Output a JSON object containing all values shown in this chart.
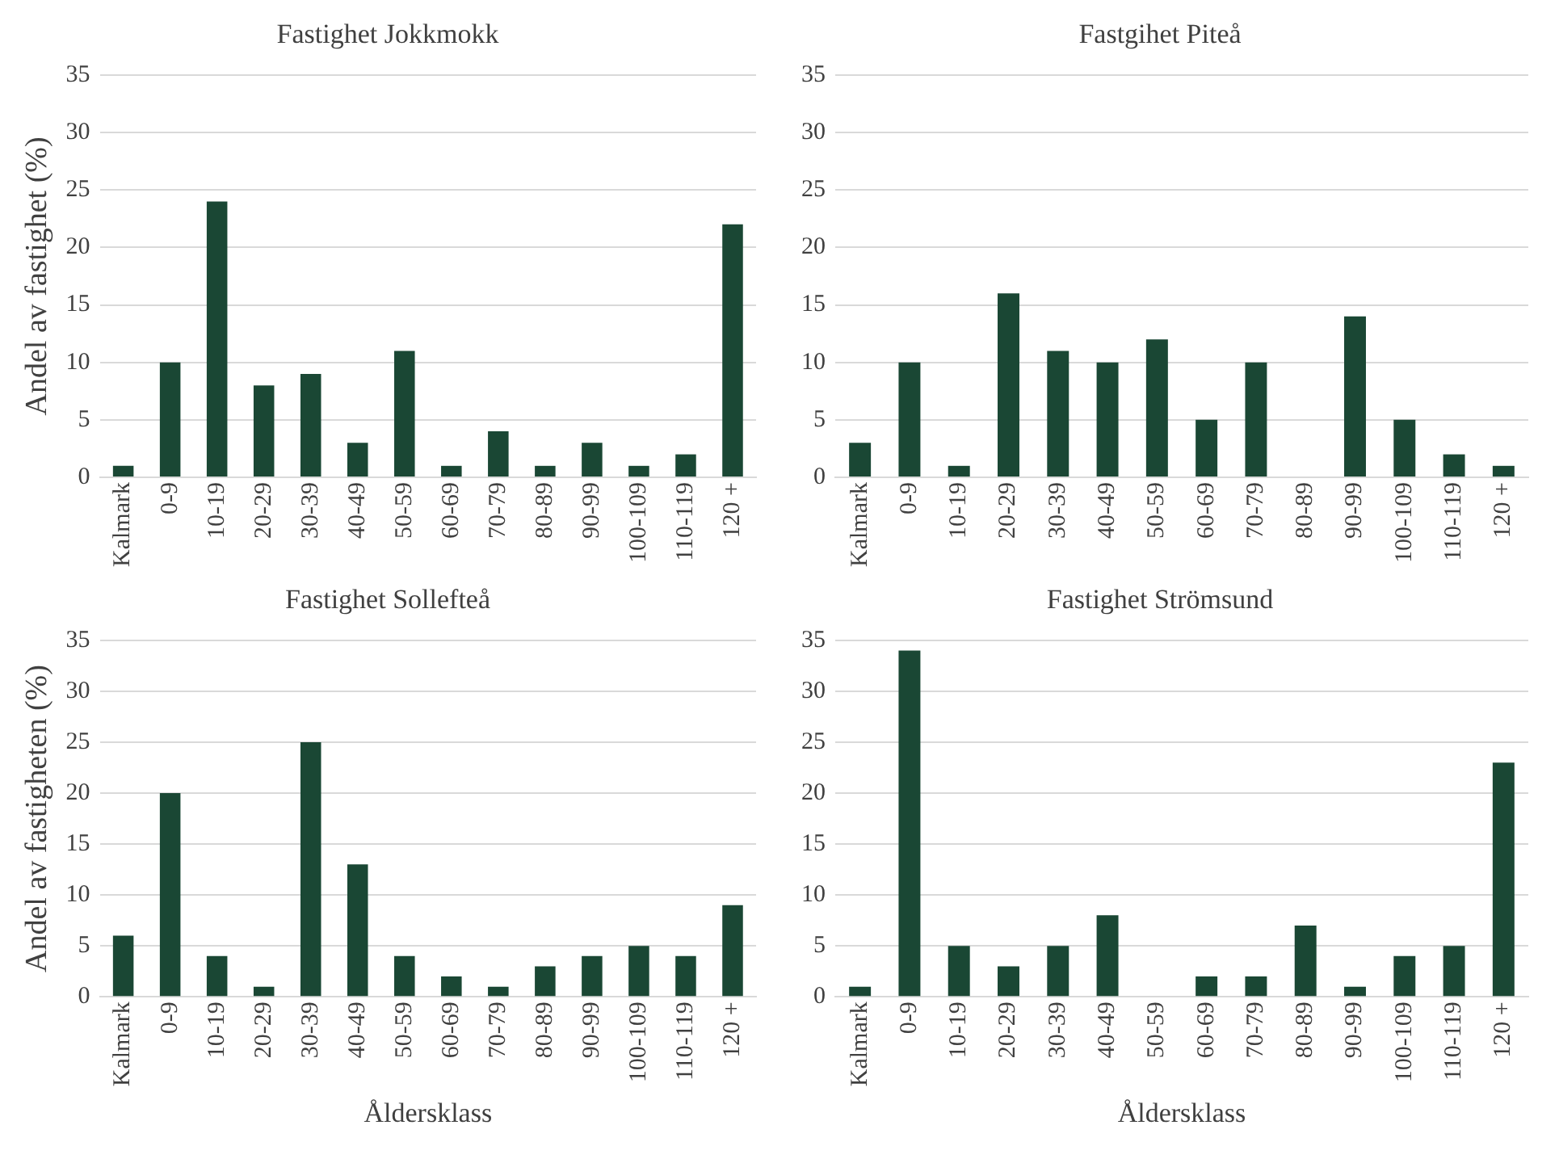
{
  "chart_data": [
    {
      "type": "bar",
      "title": "Fastighet Jokkmokk",
      "ylabel": "Andel av fastighet (%)",
      "categories": [
        "Kalmark",
        "0-9",
        "10-19",
        "20-29",
        "30-39",
        "40-49",
        "50-59",
        "60-69",
        "70-79",
        "80-89",
        "90-99",
        "100-109",
        "110-119",
        "120 +"
      ],
      "values": [
        1,
        10,
        24,
        8,
        9,
        3,
        11,
        1,
        4,
        1,
        3,
        1,
        2,
        22
      ],
      "color": "#1a4734",
      "ylim": [
        0,
        35
      ],
      "yticks": [
        0,
        5,
        10,
        15,
        20,
        25,
        30,
        35
      ],
      "grid": "y"
    },
    {
      "type": "bar",
      "title": "Fastgihet Piteå",
      "categories": [
        "Kalmark",
        "0-9",
        "10-19",
        "20-29",
        "30-39",
        "40-49",
        "50-59",
        "60-69",
        "70-79",
        "80-89",
        "90-99",
        "100-109",
        "110-119",
        "120 +"
      ],
      "values": [
        3,
        10,
        1,
        16,
        11,
        10,
        12,
        5,
        10,
        0,
        14,
        5,
        2,
        1
      ],
      "color": "#1a4734",
      "ylim": [
        0,
        35
      ],
      "yticks": [
        0,
        5,
        10,
        15,
        20,
        25,
        30,
        35
      ],
      "grid": "y"
    },
    {
      "type": "bar",
      "title": "Fastighet Sollefteå",
      "ylabel": "Andel av fastigheten (%)",
      "xlabel": "Åldersklass",
      "categories": [
        "Kalmark",
        "0-9",
        "10-19",
        "20-29",
        "30-39",
        "40-49",
        "50-59",
        "60-69",
        "70-79",
        "80-89",
        "90-99",
        "100-109",
        "110-119",
        "120 +"
      ],
      "values": [
        6,
        20,
        4,
        1,
        25,
        13,
        4,
        2,
        1,
        3,
        4,
        5,
        4,
        9
      ],
      "color": "#1a4734",
      "ylim": [
        0,
        35
      ],
      "yticks": [
        0,
        5,
        10,
        15,
        20,
        25,
        30,
        35
      ],
      "grid": "y"
    },
    {
      "type": "bar",
      "title": "Fastighet Strömsund",
      "xlabel": "Åldersklass",
      "categories": [
        "Kalmark",
        "0-9",
        "10-19",
        "20-29",
        "30-39",
        "40-49",
        "50-59",
        "60-69",
        "70-79",
        "80-89",
        "90-99",
        "100-109",
        "110-119",
        "120 +"
      ],
      "values": [
        1,
        34,
        5,
        3,
        5,
        8,
        0,
        2,
        2,
        7,
        1,
        4,
        5,
        23
      ],
      "color": "#1a4734",
      "ylim": [
        0,
        35
      ],
      "yticks": [
        0,
        5,
        10,
        15,
        20,
        25,
        30,
        35
      ],
      "grid": "y"
    }
  ]
}
